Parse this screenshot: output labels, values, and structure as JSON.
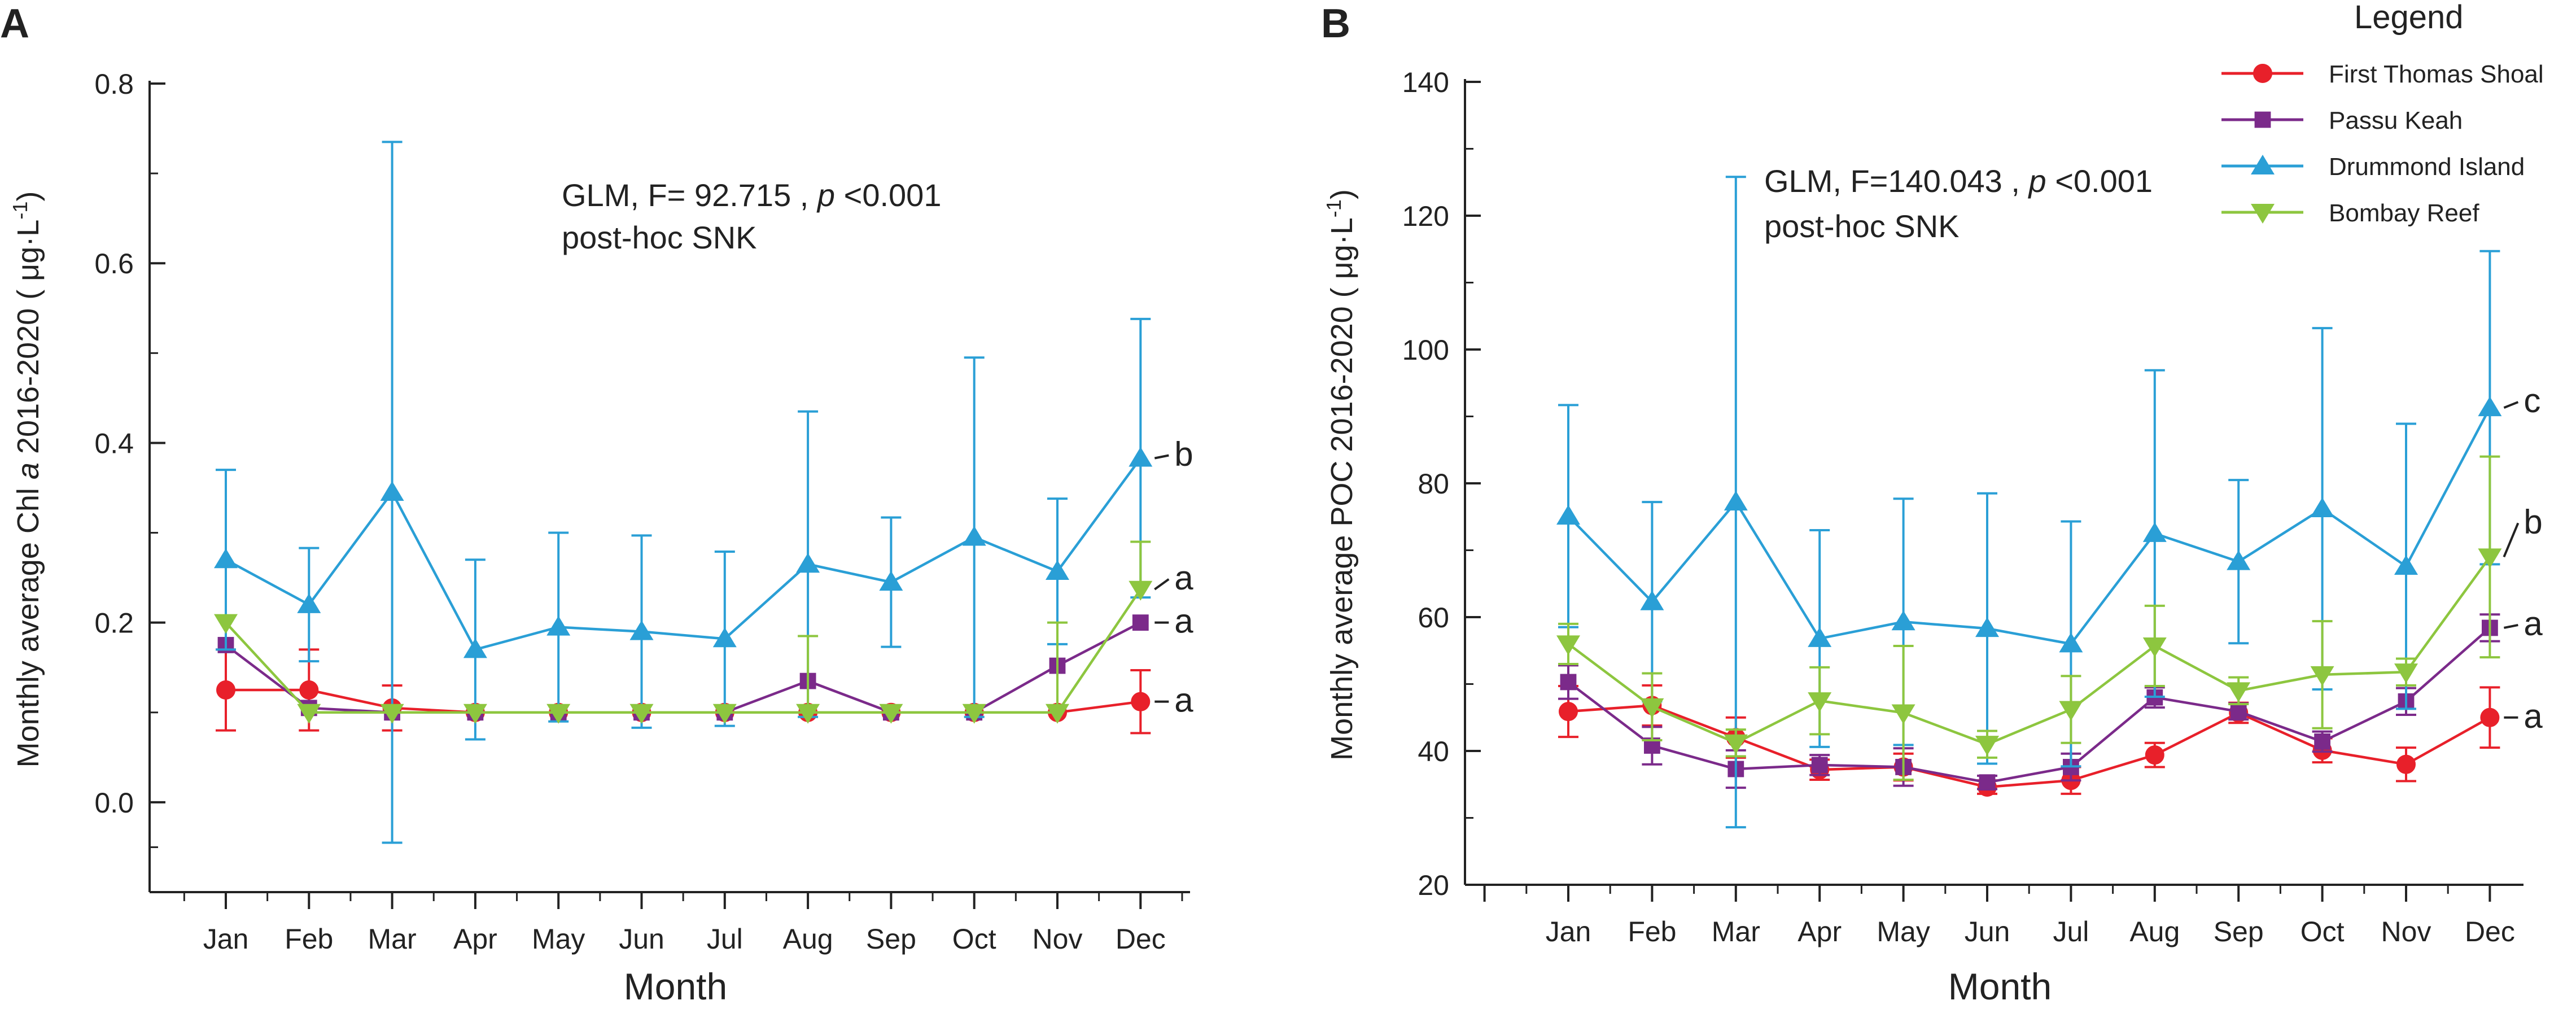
{
  "months": [
    "Jan",
    "Feb",
    "Mar",
    "Apr",
    "May",
    "Jun",
    "Jul",
    "Aug",
    "Sep",
    "Oct",
    "Nov",
    "Dec"
  ],
  "colors": {
    "first_thomas_shoal": "#e8202a",
    "passu_keah": "#7b2a8a",
    "drummond_island": "#2a9fd6",
    "bombay_reef": "#8dc63f",
    "axis": "#222222"
  },
  "legend": {
    "title": "Legend",
    "entries": [
      {
        "name": "First Thomas Shoal",
        "marker": "circle",
        "color": "#e8202a"
      },
      {
        "name": "Passu Keah",
        "marker": "square",
        "color": "#7b2a8a"
      },
      {
        "name": "Drummond Island",
        "marker": "triangle-up",
        "color": "#2a9fd6"
      },
      {
        "name": "Bombay Reef",
        "marker": "triangle-down",
        "color": "#8dc63f"
      }
    ]
  },
  "chart_data": [
    {
      "panel": "A",
      "type": "line",
      "xlabel": "Month",
      "ylabel_parts": [
        "Monthly average Chl ",
        "a",
        " 2016-2020 ( μg·L",
        "-1",
        ")"
      ],
      "ylim": [
        -0.1,
        0.8
      ],
      "yticks": [
        "0.0",
        "0.2",
        "0.4",
        "0.6",
        "0.8"
      ],
      "ytick_values": [
        0.0,
        0.2,
        0.4,
        0.6,
        0.8
      ],
      "annotation": {
        "line1_a": "GLM, F= 92.715 , ",
        "line1_p": "p",
        "line1_b": " <0.001",
        "line2": "post-hoc SNK"
      },
      "series": [
        {
          "key": "first_thomas_shoal",
          "name": "First Thomas Shoal",
          "values": [
            0.125,
            0.125,
            0.105,
            0.1,
            0.1,
            0.1,
            0.1,
            0.1,
            0.1,
            0.1,
            0.1,
            0.112
          ],
          "err_hi": [
            0.045,
            0.045,
            0.025,
            0.0,
            0.0,
            0.0,
            0.0,
            0.0,
            0.0,
            0.0,
            0.0,
            0.035
          ],
          "err_lo": [
            0.045,
            0.045,
            0.025,
            0.0,
            0.0,
            0.0,
            0.0,
            0.0,
            0.0,
            0.0,
            0.0,
            0.035
          ],
          "label": "a"
        },
        {
          "key": "passu_keah",
          "name": "Passu Keah",
          "values": [
            0.175,
            0.105,
            0.1,
            0.1,
            0.1,
            0.1,
            0.1,
            0.135,
            0.1,
            0.1,
            0.152,
            0.2
          ],
          "err_hi": [
            0.0,
            0.0,
            0.0,
            0.0,
            0.0,
            0.0,
            0.0,
            0.0,
            0.0,
            0.0,
            0.0,
            0.0
          ],
          "err_lo": [
            0.0,
            0.0,
            0.0,
            0.0,
            0.0,
            0.0,
            0.0,
            0.0,
            0.0,
            0.0,
            0.0,
            0.0
          ],
          "label": "a"
        },
        {
          "key": "drummond_island",
          "name": "Drummond Island",
          "values": [
            0.27,
            0.22,
            0.345,
            0.17,
            0.195,
            0.19,
            0.182,
            0.265,
            0.245,
            0.295,
            0.257,
            0.383
          ],
          "err_hi": [
            0.1,
            0.063,
            0.39,
            0.1,
            0.105,
            0.107,
            0.097,
            0.17,
            0.072,
            0.2,
            0.081,
            0.155
          ],
          "err_lo": [
            0.1,
            0.063,
            0.39,
            0.1,
            0.105,
            0.107,
            0.097,
            0.17,
            0.072,
            0.2,
            0.081,
            0.155
          ],
          "label": "b"
        },
        {
          "key": "bombay_reef",
          "name": "Bombay Reef",
          "values": [
            0.2,
            0.1,
            0.1,
            0.1,
            0.1,
            0.1,
            0.1,
            0.1,
            0.1,
            0.1,
            0.1,
            0.237
          ],
          "err_hi": [
            0.0,
            0.0,
            0.0,
            0.0,
            0.0,
            0.0,
            0.0,
            0.085,
            0.0,
            0.0,
            0.1,
            0.053
          ],
          "err_lo": [
            0.0,
            0.0,
            0.0,
            0.0,
            0.0,
            0.0,
            0.0,
            0.0,
            0.0,
            0.0,
            0.0,
            0.0
          ],
          "label": "a"
        }
      ]
    },
    {
      "panel": "B",
      "type": "line",
      "xlabel": "Month",
      "ylabel_parts": [
        "Monthly average POC 2016-2020 ( μg·L",
        "-1",
        ")"
      ],
      "ylim": [
        20,
        140
      ],
      "yticks": [
        "20",
        "40",
        "60",
        "80",
        "100",
        "120",
        "140"
      ],
      "ytick_values": [
        20,
        40,
        60,
        80,
        100,
        120,
        140
      ],
      "annotation": {
        "line1_a": "GLM, F=140.043 , ",
        "line1_p": "p",
        "line1_b": " <0.001",
        "line2": "post-hoc SNK"
      },
      "series": [
        {
          "key": "first_thomas_shoal",
          "name": "First Thomas Shoal",
          "values": [
            45.9,
            46.8,
            42.0,
            37.2,
            37.6,
            34.6,
            35.6,
            39.4,
            45.7,
            40.1,
            38.0,
            45.0
          ],
          "err_hi": [
            3.8,
            3.0,
            3.0,
            1.5,
            2.0,
            1.0,
            2.0,
            1.8,
            1.5,
            1.8,
            2.5,
            4.5
          ],
          "err_lo": [
            3.8,
            3.0,
            3.0,
            1.5,
            2.0,
            1.0,
            2.0,
            1.8,
            1.5,
            1.8,
            2.5,
            4.5
          ],
          "label": "a"
        },
        {
          "key": "passu_keah",
          "name": "Passu Keah",
          "values": [
            50.3,
            40.8,
            37.3,
            37.9,
            37.6,
            35.3,
            37.6,
            48.0,
            45.9,
            41.4,
            47.4,
            58.4
          ],
          "err_hi": [
            2.5,
            2.8,
            2.8,
            1.5,
            2.8,
            1.0,
            2.0,
            1.5,
            1.2,
            1.5,
            2.0,
            2.0
          ],
          "err_lo": [
            2.5,
            2.8,
            2.8,
            1.5,
            2.8,
            1.0,
            2.0,
            1.5,
            1.2,
            1.5,
            2.0,
            2.0
          ],
          "label": "a"
        },
        {
          "key": "drummond_island",
          "name": "Drummond Island",
          "values": [
            75.1,
            62.3,
            77.2,
            56.8,
            59.3,
            58.3,
            56.0,
            72.5,
            68.3,
            76.2,
            67.6,
            91.3
          ],
          "err_hi": [
            16.6,
            14.9,
            48.6,
            16.2,
            18.4,
            20.2,
            18.3,
            24.4,
            12.2,
            27.0,
            21.3,
            23.4
          ],
          "err_lo": [
            16.6,
            14.9,
            48.6,
            16.2,
            18.4,
            20.2,
            18.3,
            24.4,
            12.2,
            27.0,
            21.3,
            23.4
          ],
          "label": "c"
        },
        {
          "key": "bombay_reef",
          "name": "Bombay Reef",
          "values": [
            56.0,
            46.6,
            41.2,
            47.5,
            45.7,
            41.0,
            46.2,
            55.7,
            49.0,
            51.4,
            51.8,
            69.0
          ],
          "err_hi": [
            3.0,
            5.0,
            2.0,
            5.0,
            10.0,
            2.0,
            5.0,
            6.0,
            2.0,
            8.0,
            2.0,
            15.0
          ],
          "err_lo": [
            3.0,
            5.0,
            2.0,
            5.0,
            10.0,
            2.0,
            5.0,
            6.0,
            2.0,
            8.0,
            2.0,
            15.0
          ],
          "label": "b"
        }
      ]
    }
  ]
}
